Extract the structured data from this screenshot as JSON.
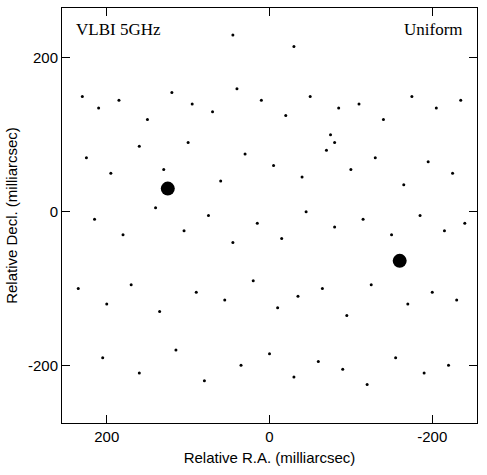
{
  "chart_data": {
    "type": "scatter",
    "annotations": [
      "VLBI 5GHz",
      "Uniform"
    ],
    "x_label": "Relative R.A. (milliarcsec)",
    "y_label": "Relative Decl. (milliarcsec)",
    "xlim": [
      255,
      -255
    ],
    "ylim": [
      -275,
      265
    ],
    "xticks": [
      200,
      0,
      -200
    ],
    "yticks": [
      -200,
      0,
      200
    ],
    "grid": false,
    "color": "#000000",
    "marker": "dot",
    "points": {
      "x": [
        230,
        210,
        185,
        150,
        120,
        95,
        70,
        40,
        10,
        -20,
        -50,
        -85,
        -110,
        -140,
        -175,
        -205,
        -235,
        225,
        195,
        160,
        130,
        100,
        60,
        30,
        -5,
        -40,
        -70,
        -100,
        -130,
        -165,
        -195,
        -225,
        215,
        180,
        140,
        105,
        75,
        45,
        15,
        -15,
        -45,
        -80,
        -115,
        -150,
        -185,
        -215,
        -240,
        235,
        200,
        170,
        135,
        90,
        55,
        20,
        -10,
        -35,
        -65,
        -95,
        -125,
        -170,
        -200,
        -230,
        205,
        160,
        115,
        80,
        35,
        0,
        -30,
        -60,
        -90,
        -120,
        -155,
        -190,
        -220,
        45,
        -30,
        -75,
        -80
      ],
      "y": [
        150,
        135,
        145,
        120,
        155,
        140,
        130,
        160,
        145,
        125,
        150,
        135,
        140,
        120,
        150,
        135,
        145,
        70,
        50,
        85,
        55,
        90,
        40,
        75,
        60,
        45,
        80,
        55,
        70,
        35,
        65,
        50,
        -10,
        -30,
        5,
        -25,
        -5,
        -40,
        -15,
        -35,
        0,
        -20,
        -10,
        -30,
        -5,
        -25,
        -15,
        -100,
        -120,
        -95,
        -130,
        -105,
        -115,
        -90,
        -125,
        -110,
        -100,
        -135,
        -95,
        -120,
        -105,
        -115,
        -190,
        -210,
        -180,
        -220,
        -200,
        -185,
        -215,
        -195,
        -205,
        -225,
        -190,
        -210,
        -200,
        230,
        215,
        100,
        90
      ]
    },
    "sources": {
      "x": [
        125,
        -160
      ],
      "y": [
        30,
        -64
      ]
    }
  }
}
